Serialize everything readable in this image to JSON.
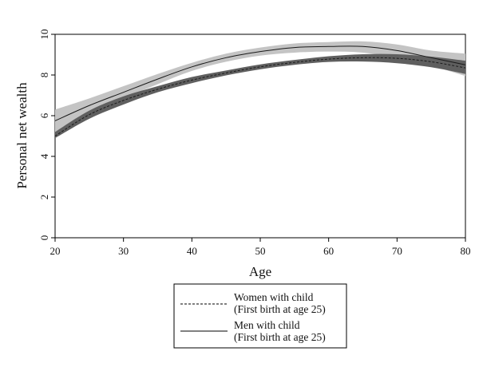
{
  "chart_data": {
    "type": "line",
    "xlabel": "Age",
    "ylabel": "Personal net wealth",
    "xlim": [
      20,
      80
    ],
    "ylim": [
      0,
      10
    ],
    "xticks": [
      20,
      30,
      40,
      50,
      60,
      70,
      80
    ],
    "yticks": [
      0,
      2,
      4,
      6,
      8,
      10
    ],
    "grid": false,
    "legend_position": "bottom",
    "x": [
      20,
      25,
      30,
      35,
      40,
      45,
      50,
      55,
      60,
      65,
      70,
      75,
      80
    ],
    "series": [
      {
        "name": "Women with child",
        "name_line2": "(First birth at age 25)",
        "line_style": "dashed",
        "band_color": "#5f5f5f",
        "values": [
          5.0,
          6.05,
          6.75,
          7.3,
          7.75,
          8.1,
          8.4,
          8.62,
          8.78,
          8.85,
          8.82,
          8.65,
          8.35
        ],
        "ci_lower": [
          4.9,
          5.85,
          6.55,
          7.15,
          7.6,
          7.98,
          8.28,
          8.5,
          8.64,
          8.66,
          8.58,
          8.38,
          8.05
        ],
        "ci_upper": [
          5.2,
          6.25,
          6.95,
          7.45,
          7.9,
          8.22,
          8.52,
          8.74,
          8.92,
          9.02,
          9.02,
          8.9,
          8.7
        ]
      },
      {
        "name": "Men with child",
        "name_line2": "(First birth at age 25)",
        "line_style": "solid",
        "band_color": "#c4c4c4",
        "values": [
          5.75,
          6.5,
          7.15,
          7.8,
          8.4,
          8.85,
          9.15,
          9.35,
          9.4,
          9.4,
          9.2,
          8.85,
          8.5
        ],
        "ci_lower": [
          5.15,
          6.1,
          6.85,
          7.55,
          8.2,
          8.65,
          8.95,
          9.1,
          9.15,
          9.1,
          8.85,
          8.45,
          7.95
        ],
        "ci_upper": [
          6.3,
          6.85,
          7.45,
          8.05,
          8.6,
          9.05,
          9.35,
          9.55,
          9.62,
          9.65,
          9.5,
          9.2,
          9.05
        ]
      }
    ]
  }
}
